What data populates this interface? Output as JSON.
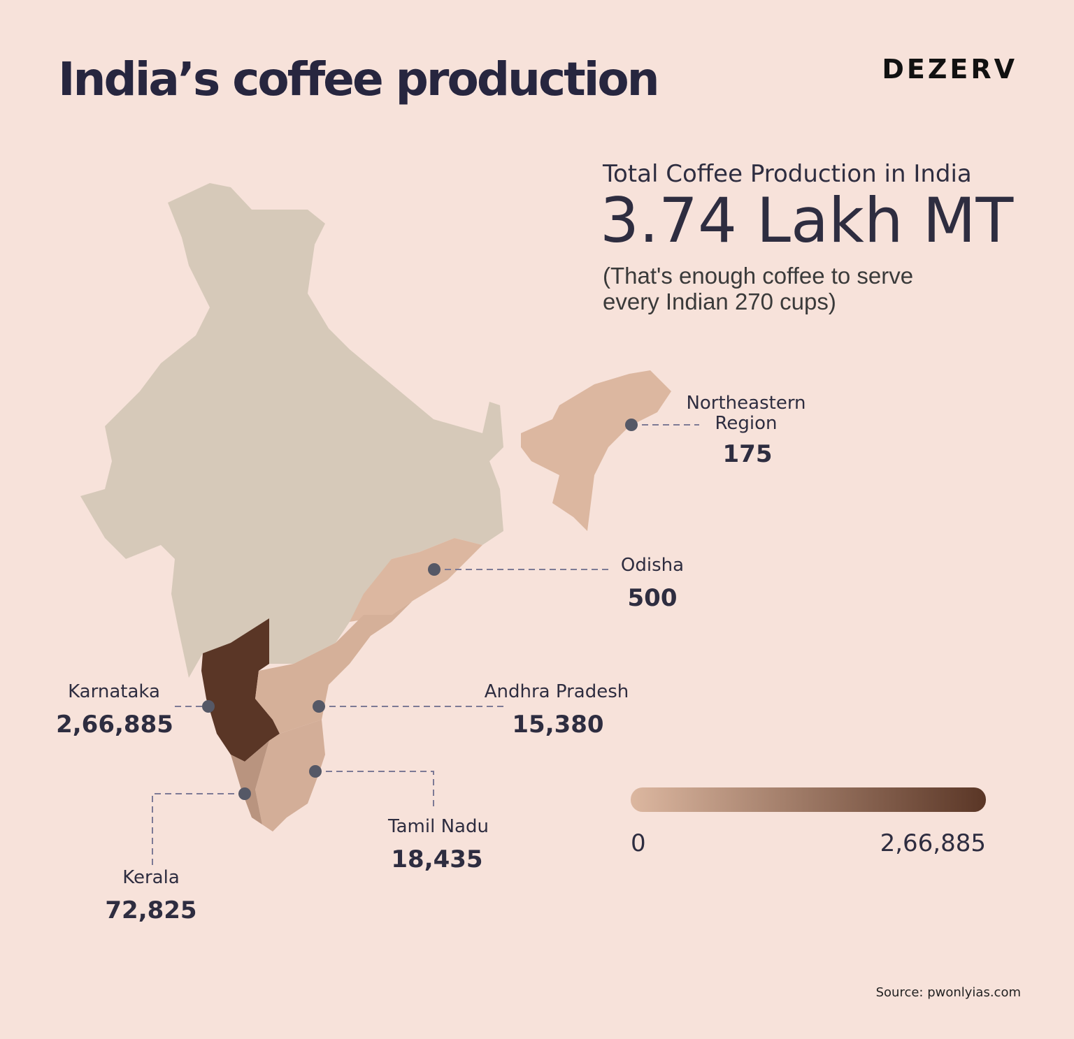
{
  "header": {
    "title": "India’s coffee production",
    "brand": "DEZERV"
  },
  "summary": {
    "label": "Total Coffee Production in India",
    "value": "3.74 Lakh MT",
    "note": [
      "(That's enough coffee to serve",
      "every Indian 270 cups)"
    ]
  },
  "regions": [
    {
      "name": [
        "Northeastern",
        "Region"
      ],
      "value": 175,
      "value_label": "175"
    },
    {
      "name": [
        "Odisha"
      ],
      "value": 500,
      "value_label": "500"
    },
    {
      "name": [
        "Karnataka"
      ],
      "value": 266885,
      "value_label": "2,66,885"
    },
    {
      "name": [
        "Andhra Pradesh"
      ],
      "value": 15380,
      "value_label": "15,380"
    },
    {
      "name": [
        "Tamil Nadu"
      ],
      "value": 18435,
      "value_label": "18,435"
    },
    {
      "name": [
        "Kerala"
      ],
      "value": 72825,
      "value_label": "72,825"
    }
  ],
  "legend": {
    "min": {
      "value": 0,
      "label": "0"
    },
    "max": {
      "value": 266885,
      "label": "2,66,885"
    }
  },
  "source": "Source: pwonlyias.com"
}
